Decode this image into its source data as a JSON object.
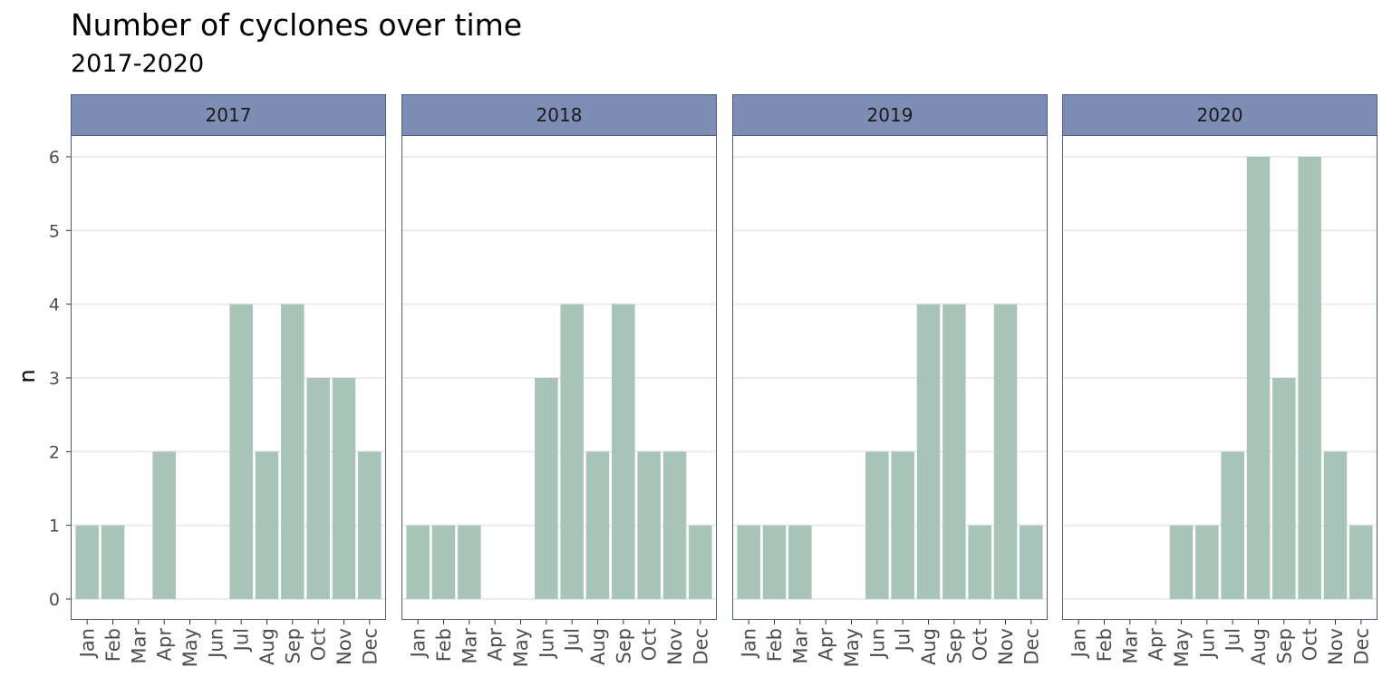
{
  "chart_data": {
    "type": "bar",
    "title": "Number of cyclones over time",
    "subtitle": "2017-2020",
    "xlabel": "",
    "ylabel": "n",
    "ylim": [
      0,
      6
    ],
    "yticks": [
      0,
      1,
      2,
      3,
      4,
      5,
      6
    ],
    "grid": "horizontal",
    "categories": [
      "Jan",
      "Feb",
      "Mar",
      "Apr",
      "May",
      "Jun",
      "Jul",
      "Aug",
      "Sep",
      "Oct",
      "Nov",
      "Dec"
    ],
    "facets": [
      {
        "label": "2017",
        "values": [
          1,
          1,
          0,
          2,
          0,
          0,
          4,
          2,
          4,
          3,
          3,
          2
        ]
      },
      {
        "label": "2018",
        "values": [
          1,
          1,
          1,
          0,
          0,
          3,
          4,
          2,
          4,
          2,
          2,
          1
        ]
      },
      {
        "label": "2019",
        "values": [
          1,
          1,
          1,
          0,
          0,
          2,
          2,
          4,
          4,
          1,
          4,
          1
        ]
      },
      {
        "label": "2020",
        "values": [
          0,
          0,
          0,
          0,
          1,
          1,
          2,
          6,
          3,
          6,
          2,
          1
        ]
      }
    ],
    "colors": {
      "bar": "#a8c3b7",
      "strip_fill": "#7d8db4",
      "panel_border": "#4a5a8a",
      "grid": "#ebebeb",
      "tick_text": "#4d4d4d"
    }
  }
}
